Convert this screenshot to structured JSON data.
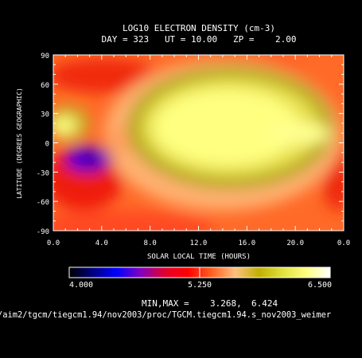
{
  "header": {
    "title": "LOG10 ELECTRON DENSITY (cm-3)",
    "subtitle": "DAY = 323   UT = 10.00   ZP =    2.00"
  },
  "colorbar": {
    "labels": [
      "4.000",
      "5.250",
      "6.500"
    ],
    "stops": [
      "#000000",
      "#000080",
      "#0000ff",
      "#8000c0",
      "#e00030",
      "#ff0000",
      "#ff6020",
      "#ffc080",
      "#c0b000",
      "#e0e040",
      "#ffff80",
      "#ffffff"
    ]
  },
  "footer": {
    "minmax_label": "MIN,MAX =",
    "min_value": "3.268,",
    "max_value": "6.424",
    "path": "/aim2/tgcm/tiegcm1.94/nov2003/proc/TGCM.tiegcm1.94.s_nov2003_weimer"
  },
  "chart_data": {
    "type": "heatmap",
    "title": "LOG10 ELECTRON DENSITY (cm-3)",
    "xlabel": "SOLAR LOCAL TIME (HOURS)",
    "ylabel": "LATITUDE (DEGREES GEOGRAPHIC)",
    "xlim": [
      0,
      24
    ],
    "ylim": [
      -90,
      90
    ],
    "x_ticks": [
      "0.0",
      "4.0",
      "8.0",
      "12.0",
      "16.0",
      "20.0",
      "0.0"
    ],
    "y_ticks": [
      "-90",
      "-60",
      "-30",
      "0",
      "30",
      "60",
      "90"
    ],
    "value_range": [
      4.0,
      6.5
    ],
    "min": 3.268,
    "max": 6.424
  }
}
